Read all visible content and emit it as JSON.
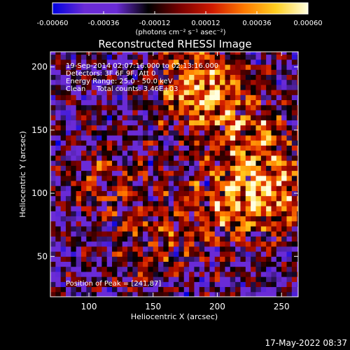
{
  "colorbar": {
    "tick_labels": [
      "-0.00060",
      "-0.00036",
      "-0.00012",
      "0.00012",
      "0.00036",
      "0.00060"
    ],
    "tick_values": [
      -0.0006,
      -0.00036,
      -0.00012,
      0.00012,
      0.00036,
      0.0006
    ],
    "range": [
      -0.0006,
      0.0006
    ],
    "units_label": "(photons cm⁻² s⁻¹ asec⁻²)",
    "colors": [
      "#0000e0",
      "#6a2bd6",
      "#6a2bd6",
      "#000000",
      "#7a0000",
      "#d01a00",
      "#ff7a00",
      "#ffcf20",
      "#ffffe0"
    ]
  },
  "chart_data": {
    "type": "heatmap",
    "title": "Reconstructed RHESSI Image",
    "xlabel": "Heliocentric X (arcsec)",
    "ylabel": "Heliocentric Y (arcsec)",
    "xlim": [
      70,
      263
    ],
    "ylim": [
      18,
      212
    ],
    "x_ticks": [
      100,
      150,
      200,
      250
    ],
    "y_ticks": [
      50,
      100,
      150,
      200
    ],
    "x_tick_labels": [
      "100",
      "150",
      "200",
      "250"
    ],
    "y_tick_labels": [
      "50",
      "100",
      "150",
      "200"
    ],
    "info_lines": [
      "19-Sep-2014 02:07:16.000 to 02:13:16.000",
      "Detectors: 3F 6F 9F, Att 0",
      "Energy Range: 25.0 - 50.0 keV",
      "Clean     Total counts: 3.46E+03"
    ],
    "peak_label": "Position of Peak = [241,87]",
    "peak_position": [
      241,
      87
    ],
    "sources": [
      {
        "x": 187,
        "y": 183,
        "value": 0.0006
      },
      {
        "x": 240,
        "y": 100,
        "value": 0.00055
      },
      {
        "x": 225,
        "y": 145,
        "value": 0.00035
      },
      {
        "x": 200,
        "y": 90,
        "value": 0.0003
      },
      {
        "x": 150,
        "y": 60,
        "value": 0.00025
      },
      {
        "x": 115,
        "y": 110,
        "value": 0.0002
      }
    ]
  },
  "footer": {
    "timestamp": "17-May-2022 08:37"
  }
}
